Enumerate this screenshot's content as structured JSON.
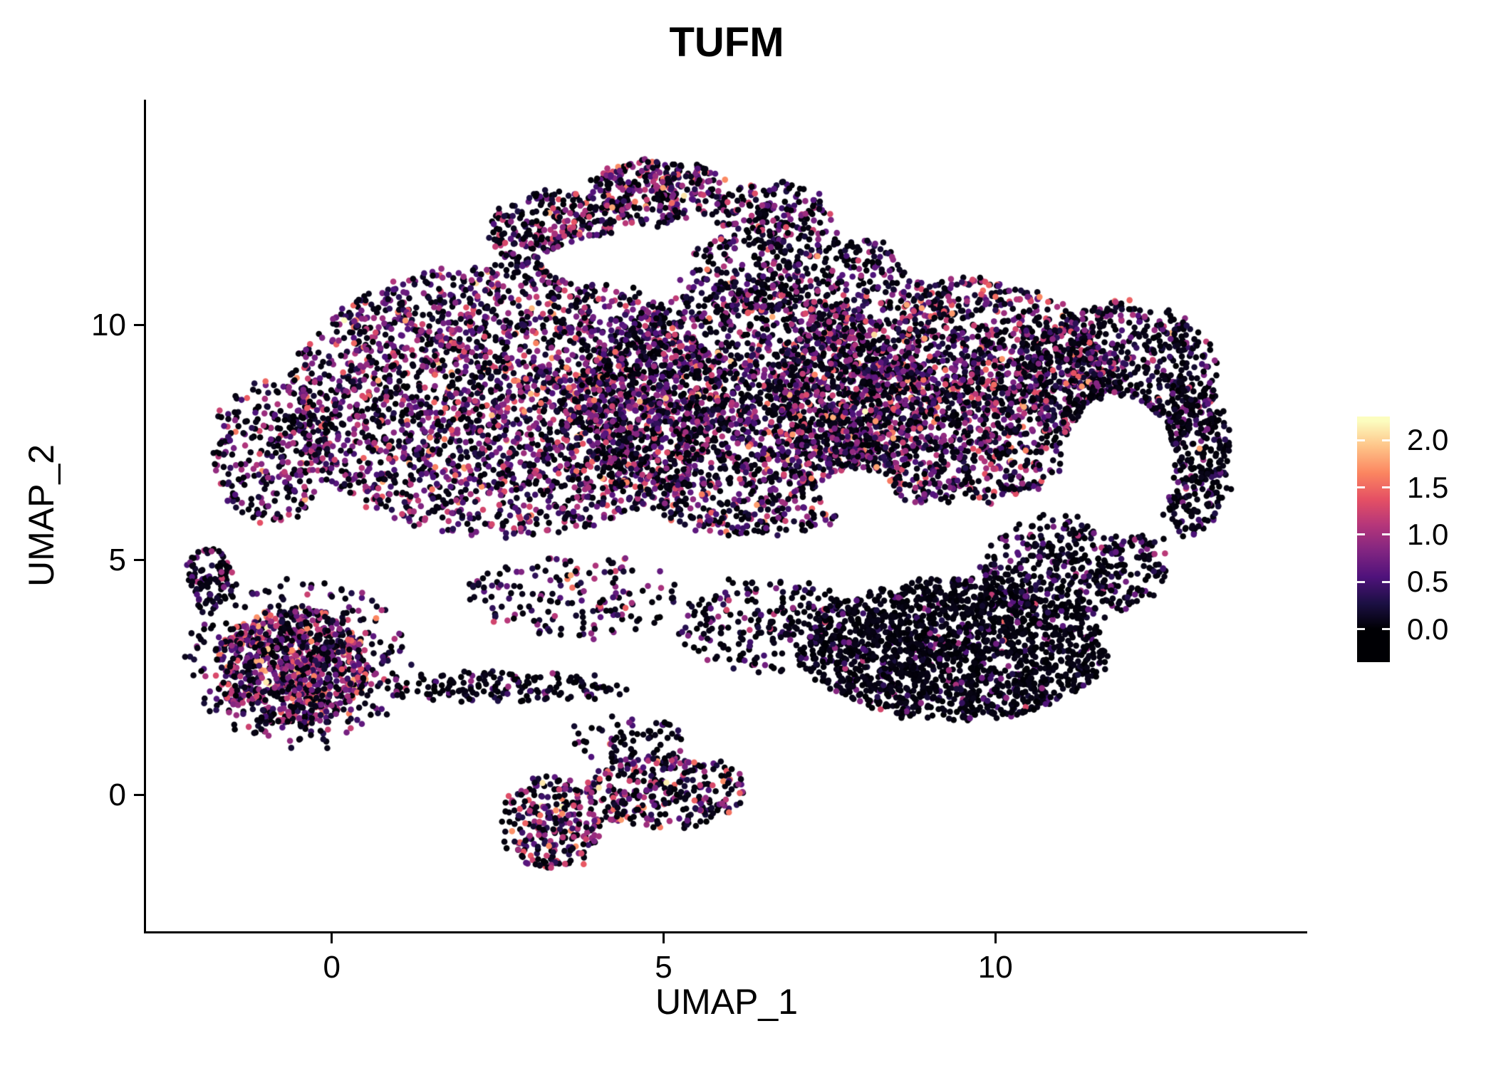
{
  "chart_data": {
    "type": "scatter",
    "title": "TUFM",
    "xlabel": "UMAP_1",
    "ylabel": "UMAP_2",
    "xlim": [
      -2.8,
      14.7
    ],
    "ylim": [
      -2.9,
      14.8
    ],
    "grid": false,
    "legend_position": "right",
    "point_radius_px": 4.3,
    "x_ticks": {
      "values": [
        0,
        5,
        10
      ],
      "labels": [
        "0",
        "5",
        "10"
      ]
    },
    "y_ticks": {
      "values": [
        10,
        5,
        0
      ],
      "labels": [
        "10",
        "5",
        "0"
      ]
    },
    "colorbar": {
      "tick_values": [
        2.0,
        1.5,
        1.0,
        0.5,
        0.0
      ],
      "tick_labels": [
        "2.0",
        "1.5",
        "1.0",
        "0.5",
        "0.0"
      ],
      "value_range": [
        -0.35,
        2.25
      ],
      "color_domain": [
        0,
        2.2
      ],
      "colormap_name": "magma",
      "colormap_stops": [
        "#000004",
        "#1c1044",
        "#4f127b",
        "#812581",
        "#b5367a",
        "#e55064",
        "#fb8560",
        "#fec287",
        "#fcfdbf"
      ]
    },
    "seed": 42,
    "clusters": [
      {
        "name": "main-left",
        "cx": 2.6,
        "cy": 8.4,
        "rx": 3.3,
        "ry": 2.9,
        "n": 2800,
        "zero_frac": 0.4,
        "mean": 0.78,
        "sd": 0.45
      },
      {
        "name": "main-left-tip",
        "cx": -0.9,
        "cy": 7.3,
        "rx": 0.9,
        "ry": 1.5,
        "n": 300,
        "zero_frac": 0.5,
        "mean": 0.7,
        "sd": 0.4
      },
      {
        "name": "main-center",
        "cx": 6.3,
        "cy": 8.2,
        "rx": 2.6,
        "ry": 2.7,
        "n": 2300,
        "zero_frac": 0.46,
        "mean": 0.72,
        "sd": 0.45
      },
      {
        "name": "main-right",
        "cx": 9.3,
        "cy": 8.6,
        "rx": 2.6,
        "ry": 2.4,
        "n": 2300,
        "zero_frac": 0.45,
        "mean": 0.75,
        "sd": 0.45
      },
      {
        "name": "right-lobe",
        "cx": 11.9,
        "cy": 8.9,
        "rx": 1.5,
        "ry": 1.6,
        "n": 700,
        "zero_frac": 0.62,
        "mean": 0.6,
        "sd": 0.4
      },
      {
        "name": "right-rim",
        "cx": 12.9,
        "cy": 7.2,
        "rx": 0.65,
        "ry": 1.7,
        "n": 350,
        "zero_frac": 0.8,
        "mean": 0.5,
        "sd": 0.35
      },
      {
        "name": "top-arm-a",
        "cx": 3.3,
        "cy": 12.0,
        "rx": 0.95,
        "ry": 0.85,
        "n": 320,
        "zero_frac": 0.45,
        "mean": 0.8,
        "sd": 0.45
      },
      {
        "name": "top-arm-b",
        "cx": 4.9,
        "cy": 12.85,
        "rx": 1.05,
        "ry": 0.7,
        "n": 330,
        "zero_frac": 0.45,
        "mean": 0.8,
        "sd": 0.45
      },
      {
        "name": "top-arm-c",
        "cx": 6.6,
        "cy": 12.4,
        "rx": 0.9,
        "ry": 0.65,
        "n": 170,
        "zero_frac": 0.55,
        "mean": 0.7,
        "sd": 0.4
      },
      {
        "name": "top-sparse",
        "cx": 6.9,
        "cy": 11.2,
        "rx": 1.7,
        "ry": 0.9,
        "n": 380,
        "zero_frac": 0.55,
        "mean": 0.65,
        "sd": 0.4
      },
      {
        "name": "bottom-right-lobe",
        "cx": 9.4,
        "cy": 3.1,
        "rx": 2.3,
        "ry": 1.5,
        "n": 1700,
        "zero_frac": 0.86,
        "mean": 0.5,
        "sd": 0.35
      },
      {
        "name": "bottom-right-upper",
        "cx": 11.2,
        "cy": 4.9,
        "rx": 1.4,
        "ry": 1.1,
        "n": 450,
        "zero_frac": 0.75,
        "mean": 0.5,
        "sd": 0.35
      },
      {
        "name": "mid-sparse",
        "cx": 6.6,
        "cy": 3.6,
        "rx": 1.4,
        "ry": 1.0,
        "n": 260,
        "zero_frac": 0.7,
        "mean": 0.6,
        "sd": 0.4
      },
      {
        "name": "below-main-sparse",
        "cx": 3.6,
        "cy": 4.2,
        "rx": 1.6,
        "ry": 0.9,
        "n": 170,
        "zero_frac": 0.55,
        "mean": 0.7,
        "sd": 0.45
      },
      {
        "name": "left-cluster-core",
        "cx": -0.6,
        "cy": 2.7,
        "rx": 1.15,
        "ry": 1.25,
        "n": 850,
        "zero_frac": 0.32,
        "mean": 0.9,
        "sd": 0.5
      },
      {
        "name": "left-cluster-halo",
        "cx": -0.5,
        "cy": 2.8,
        "rx": 1.7,
        "ry": 1.8,
        "n": 280,
        "zero_frac": 0.6,
        "mean": 0.6,
        "sd": 0.4
      },
      {
        "name": "left-cluster-tip",
        "cx": -1.85,
        "cy": 4.6,
        "rx": 0.35,
        "ry": 0.7,
        "n": 100,
        "zero_frac": 0.7,
        "mean": 0.5,
        "sd": 0.4
      },
      {
        "name": "strand",
        "cx": 2.6,
        "cy": 2.3,
        "rx": 1.9,
        "ry": 0.3,
        "n": 170,
        "zero_frac": 0.75,
        "mean": 0.5,
        "sd": 0.35
      },
      {
        "name": "bottom-cluster-left",
        "cx": 3.3,
        "cy": -0.6,
        "rx": 0.75,
        "ry": 1.0,
        "n": 280,
        "zero_frac": 0.42,
        "mean": 0.85,
        "sd": 0.5
      },
      {
        "name": "bottom-cluster-right",
        "cx": 5.0,
        "cy": 0.1,
        "rx": 1.2,
        "ry": 0.8,
        "n": 320,
        "zero_frac": 0.46,
        "mean": 0.8,
        "sd": 0.5
      },
      {
        "name": "bottom-bridge",
        "cx": 4.4,
        "cy": 1.2,
        "rx": 0.9,
        "ry": 0.5,
        "n": 60,
        "zero_frac": 0.7,
        "mean": 0.5,
        "sd": 0.4
      }
    ],
    "voids": [
      {
        "cx": 11.85,
        "cy": 7.0,
        "rx": 0.85,
        "ry": 1.5
      },
      {
        "cx": 4.3,
        "cy": 11.35,
        "rx": 1.15,
        "ry": 0.5
      },
      {
        "cx": 7.9,
        "cy": 6.4,
        "rx": 0.55,
        "ry": 0.55
      }
    ]
  }
}
